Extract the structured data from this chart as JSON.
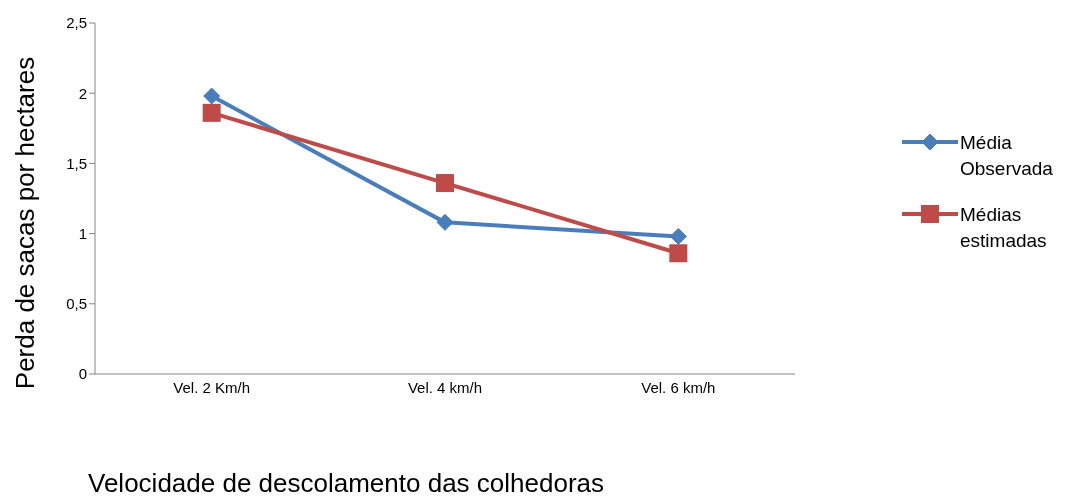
{
  "chart_data": {
    "type": "line",
    "xlabel": "Velocidade de descolamento das colhedoras",
    "ylabel": "Perda de sacas por hectares",
    "categories": [
      "Vel. 2 Km/h",
      "Vel. 4 km/h",
      "Vel. 6 km/h"
    ],
    "series": [
      {
        "name": "Média Observada",
        "color": "#4a7ebb",
        "values": [
          1.98,
          1.08,
          0.98
        ],
        "marker": "diamond"
      },
      {
        "name": "Médias estimadas",
        "color": "#be4b48",
        "values": [
          1.86,
          1.36,
          0.86
        ],
        "marker": "square"
      }
    ],
    "ylim": [
      0,
      2.5
    ],
    "yticks": [
      0,
      {
        "value": 0.5,
        "label": "0,5"
      },
      1,
      {
        "value": 1.5,
        "label": "1,5"
      },
      2,
      {
        "value": 2.5,
        "label": "2,5"
      }
    ],
    "grid": false,
    "legend": "right",
    "line_style": "solid"
  }
}
